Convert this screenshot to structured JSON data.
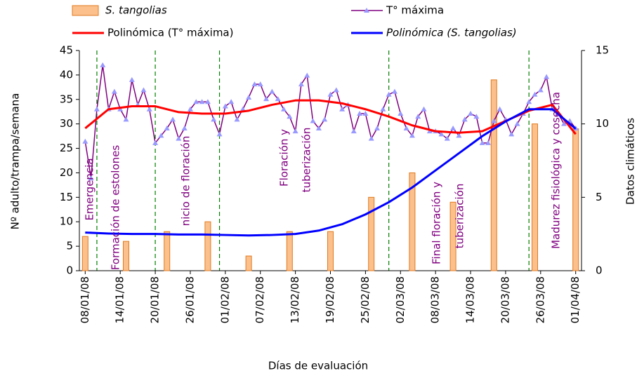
{
  "chart_data": {
    "type": "bar",
    "x_label": "Días de evaluación",
    "y_label": "Nº adulto/trampa/semana",
    "y2_label": "Datos climáticos",
    "xlim": [
      "07/01/08",
      "02/04/08"
    ],
    "xticks": [
      "08/01/08",
      "14/01/08",
      "20/01/08",
      "26/01/08",
      "01/02/08",
      "07/02/08",
      "13/02/08",
      "19/02/08",
      "25/02/08",
      "02/03/08",
      "08/03/08",
      "14/03/08",
      "20/03/08",
      "26/03/08",
      "01/04/08"
    ],
    "ylim": [
      0,
      45
    ],
    "yticks": [
      0,
      5,
      10,
      15,
      20,
      25,
      30,
      35,
      40,
      45
    ],
    "y2lim": [
      0,
      15
    ],
    "y2ticks": [
      0,
      5,
      10,
      15
    ],
    "grid": false,
    "legend": "top",
    "series": [
      {
        "name": "S. tangolias",
        "type": "bar",
        "axis": "y",
        "color": "#fbc08c",
        "x": [
          "08/01/08",
          "15/01/08",
          "22/01/08",
          "29/01/08",
          "05/02/08",
          "12/02/08",
          "19/02/08",
          "26/02/08",
          "04/03/08",
          "11/03/08",
          "18/03/08",
          "25/03/08",
          "01/04/08"
        ],
        "values": [
          7,
          6,
          8,
          10,
          3,
          8,
          8,
          15,
          20,
          14,
          39,
          30,
          29
        ]
      },
      {
        "name": "T° máxima",
        "type": "line",
        "axis": "y2",
        "color": "#800080",
        "marker_color": "#9999ff",
        "x": [
          "08/01/08",
          "09/01/08",
          "10/01/08",
          "11/01/08",
          "12/01/08",
          "13/01/08",
          "14/01/08",
          "15/01/08",
          "16/01/08",
          "17/01/08",
          "18/01/08",
          "19/01/08",
          "20/01/08",
          "21/01/08",
          "22/01/08",
          "23/01/08",
          "24/01/08",
          "25/01/08",
          "26/01/08",
          "27/01/08",
          "28/01/08",
          "29/01/08",
          "30/01/08",
          "31/01/08",
          "01/02/08",
          "02/02/08",
          "03/02/08",
          "04/02/08",
          "05/02/08",
          "06/02/08",
          "07/02/08",
          "08/02/08",
          "09/02/08",
          "10/02/08",
          "11/02/08",
          "12/02/08",
          "13/02/08",
          "14/02/08",
          "15/02/08",
          "16/02/08",
          "17/02/08",
          "18/02/08",
          "19/02/08",
          "20/02/08",
          "21/02/08",
          "22/02/08",
          "23/02/08",
          "24/02/08",
          "25/02/08",
          "26/02/08",
          "27/02/08",
          "28/02/08",
          "29/02/08",
          "01/03/08",
          "02/03/08",
          "03/03/08",
          "04/03/08",
          "05/03/08",
          "06/03/08",
          "07/03/08",
          "08/03/08",
          "09/03/08",
          "10/03/08",
          "11/03/08",
          "12/03/08",
          "13/03/08",
          "14/03/08",
          "15/03/08",
          "16/03/08",
          "17/03/08",
          "18/03/08",
          "19/03/08",
          "20/03/08",
          "21/03/08",
          "22/03/08",
          "23/03/08",
          "24/03/08",
          "25/03/08",
          "26/03/08",
          "27/03/08",
          "28/03/08",
          "29/03/08",
          "30/03/08",
          "31/03/08",
          "01/04/08"
        ],
        "values": [
          8.8,
          6.3,
          11.0,
          14.0,
          11.0,
          12.2,
          11.0,
          10.3,
          13.0,
          11.3,
          12.3,
          11.0,
          8.7,
          9.2,
          9.7,
          10.3,
          9.0,
          9.7,
          11.0,
          11.5,
          11.5,
          11.5,
          10.3,
          9.3,
          11.2,
          11.5,
          10.3,
          11.0,
          11.8,
          12.7,
          12.7,
          11.7,
          12.2,
          11.7,
          11.0,
          10.5,
          9.5,
          12.7,
          13.3,
          10.2,
          9.7,
          10.3,
          12.0,
          12.3,
          11.0,
          11.3,
          9.5,
          10.7,
          10.7,
          9.0,
          9.7,
          11.0,
          12.0,
          12.2,
          10.7,
          9.7,
          9.2,
          10.5,
          11.0,
          9.5,
          9.5,
          9.3,
          9.0,
          9.7,
          9.2,
          10.3,
          10.7,
          10.5,
          8.7,
          8.7,
          10.2,
          11.0,
          10.3,
          9.3,
          10.0,
          10.7,
          11.5,
          12.0,
          12.3,
          13.2,
          11.0,
          10.7,
          10.0,
          10.2,
          9.7
        ]
      },
      {
        "name": "Polinómica (T° máxima)",
        "type": "line",
        "axis": "y2",
        "color": "#ff0000",
        "x": [
          "08/01/08",
          "12/01/08",
          "16/01/08",
          "20/01/08",
          "24/01/08",
          "28/01/08",
          "01/02/08",
          "05/02/08",
          "09/02/08",
          "13/02/08",
          "17/02/08",
          "21/02/08",
          "25/02/08",
          "29/02/08",
          "04/03/08",
          "08/03/08",
          "12/03/08",
          "16/03/08",
          "20/03/08",
          "24/03/08",
          "28/03/08",
          "01/04/08"
        ],
        "values": [
          9.7,
          11.0,
          11.2,
          11.2,
          10.8,
          10.7,
          10.7,
          10.9,
          11.3,
          11.6,
          11.6,
          11.4,
          11.0,
          10.5,
          9.9,
          9.5,
          9.4,
          9.5,
          10.2,
          10.9,
          11.3,
          9.3
        ]
      },
      {
        "name": "Polinómica (S. tangolias)",
        "type": "line",
        "axis": "y",
        "color": "#0000ff",
        "x": [
          "08/01/08",
          "12/01/08",
          "16/01/08",
          "20/01/08",
          "24/01/08",
          "28/01/08",
          "01/02/08",
          "05/02/08",
          "09/02/08",
          "13/02/08",
          "17/02/08",
          "21/02/08",
          "25/02/08",
          "29/02/08",
          "04/03/08",
          "08/03/08",
          "12/03/08",
          "16/03/08",
          "20/03/08",
          "24/03/08",
          "28/03/08",
          "01/04/08"
        ],
        "values": [
          7.8,
          7.6,
          7.5,
          7.5,
          7.4,
          7.4,
          7.3,
          7.2,
          7.3,
          7.5,
          8.2,
          9.5,
          11.5,
          14,
          17,
          20.5,
          24,
          27.5,
          30.5,
          33,
          33,
          29
        ]
      }
    ],
    "phase_lines": [
      "10/01/08",
      "20/01/08",
      "31/01/08",
      "29/02/08",
      "24/03/08"
    ],
    "annotations": [
      "Emergencia",
      "Formación de estolones",
      "nicio de floración",
      "Floración y",
      "tuberización",
      "Final floración y",
      "tuberización",
      "Madurez fisiológica y cosecha"
    ]
  }
}
